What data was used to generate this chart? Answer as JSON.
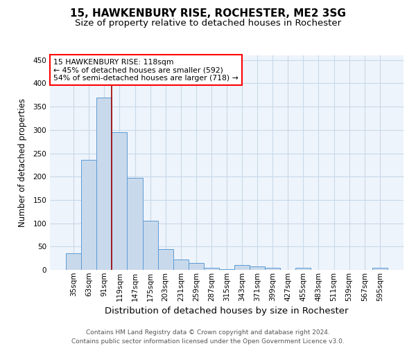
{
  "title1": "15, HAWKENBURY RISE, ROCHESTER, ME2 3SG",
  "title2": "Size of property relative to detached houses in Rochester",
  "xlabel": "Distribution of detached houses by size in Rochester",
  "ylabel": "Number of detached properties",
  "categories": [
    "35sqm",
    "63sqm",
    "91sqm",
    "119sqm",
    "147sqm",
    "175sqm",
    "203sqm",
    "231sqm",
    "259sqm",
    "287sqm",
    "315sqm",
    "343sqm",
    "371sqm",
    "399sqm",
    "427sqm",
    "455sqm",
    "483sqm",
    "511sqm",
    "539sqm",
    "567sqm",
    "595sqm"
  ],
  "values": [
    35,
    236,
    370,
    295,
    198,
    105,
    45,
    23,
    15,
    4,
    1,
    10,
    8,
    4,
    0,
    4,
    0,
    0,
    0,
    0,
    4
  ],
  "bar_color": "#c9d9ec",
  "bar_edge_color": "#5b9bd5",
  "annotation_text": "15 HAWKENBURY RISE: 118sqm\n← 45% of detached houses are smaller (592)\n54% of semi-detached houses are larger (718) →",
  "annotation_box_color": "white",
  "annotation_box_edge_color": "red",
  "vline_color": "#a00000",
  "ylim": [
    0,
    460
  ],
  "yticks": [
    0,
    50,
    100,
    150,
    200,
    250,
    300,
    350,
    400,
    450
  ],
  "grid_color": "#c8d8e8",
  "background_color": "#eef4fb",
  "footer": "Contains HM Land Registry data © Crown copyright and database right 2024.\nContains public sector information licensed under the Open Government Licence v3.0.",
  "title1_fontsize": 11,
  "title2_fontsize": 9.5,
  "xlabel_fontsize": 9.5,
  "ylabel_fontsize": 8.5,
  "tick_fontsize": 7.5,
  "footer_fontsize": 6.5,
  "annot_fontsize": 7.8
}
